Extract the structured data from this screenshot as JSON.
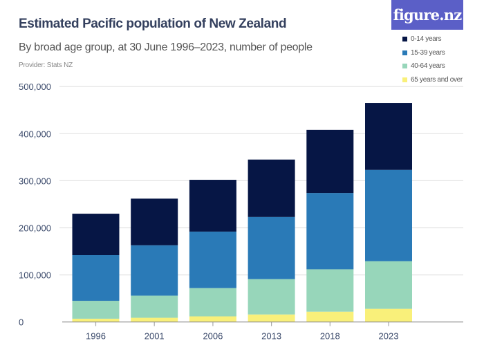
{
  "header": {
    "title": "Estimated Pacific population of New Zealand",
    "subtitle": "By broad age group, at 30 June 1996–2023, number of people",
    "provider": "Provider: Stats NZ",
    "logo": "figure.nz"
  },
  "chart_data": {
    "type": "bar",
    "stacked": true,
    "title": "Estimated Pacific population of New Zealand",
    "subtitle": "By broad age group, at 30 June 1996–2023, number of people",
    "categories": [
      "1996",
      "2001",
      "2006",
      "2013",
      "2018",
      "2023"
    ],
    "series": [
      {
        "name": "65 years and over",
        "color": "#f9f07a",
        "values": [
          7000,
          9000,
          12000,
          16000,
          22000,
          28000
        ]
      },
      {
        "name": "40-64 years",
        "color": "#97d6ba",
        "values": [
          38000,
          47000,
          60000,
          75000,
          90000,
          101000
        ]
      },
      {
        "name": "15-39 years",
        "color": "#2a7ab7",
        "values": [
          97000,
          107000,
          120000,
          132000,
          162000,
          194000
        ]
      },
      {
        "name": "0-14 years",
        "color": "#061645",
        "values": [
          88000,
          99000,
          110000,
          122000,
          134000,
          142000
        ]
      }
    ],
    "ylim": [
      0,
      500000
    ],
    "yticks": [
      "0",
      "100,000",
      "200,000",
      "300,000",
      "400,000",
      "500,000"
    ],
    "grid": true,
    "legend": "top-right"
  }
}
